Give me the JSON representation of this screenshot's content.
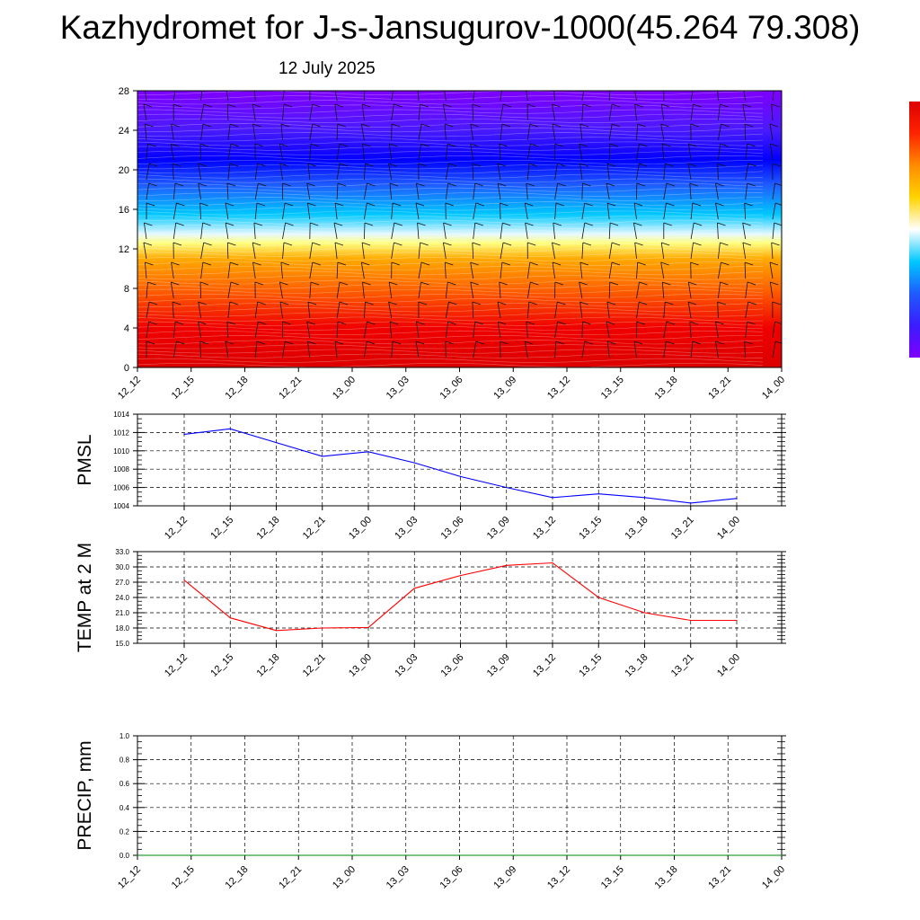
{
  "header": {
    "title": "Kazhydromet for J-s-Jansugurov-1000(45.264 79.308)",
    "date": "12 July 2025"
  },
  "colors": {
    "pmsl_line": "#0000ff",
    "temp_line": "#ff0000",
    "precip_line": "#008000",
    "grid": "#000000",
    "colorbar": [
      "#7f00ff",
      "#3a1cff",
      "#1f5bff",
      "#00c8ff",
      "#ffffff",
      "#ffd400",
      "#ff8c00",
      "#ff2400",
      "#dc0000"
    ]
  },
  "chart_data": [
    {
      "type": "heatmap",
      "title": "",
      "xlabel": "",
      "ylabel": "",
      "categories": [
        "12_12",
        "12_15",
        "12_18",
        "12_21",
        "13_00",
        "13_03",
        "13_06",
        "13_09",
        "13_12",
        "13_15",
        "13_18",
        "13_21",
        "14_00"
      ],
      "y_ticks": [
        0,
        4,
        8,
        12,
        16,
        20,
        24,
        28
      ],
      "ylim": [
        0,
        28
      ],
      "color_bands": [
        {
          "level": 0,
          "color": "#dc0000"
        },
        {
          "level": 4,
          "color": "#f00000"
        },
        {
          "level": 8,
          "color": "#ff6400"
        },
        {
          "level": 11,
          "color": "#ffaa00"
        },
        {
          "level": 12.6,
          "color": "#ffff80"
        },
        {
          "level": 13.5,
          "color": "#e6f8ff"
        },
        {
          "level": 15.5,
          "color": "#00c8ff"
        },
        {
          "level": 18.5,
          "color": "#1f5bff"
        },
        {
          "level": 21,
          "color": "#0000ff"
        },
        {
          "level": 24,
          "color": "#4a1aff"
        },
        {
          "level": 28,
          "color": "#7f00ff"
        }
      ]
    },
    {
      "type": "line",
      "title": "",
      "xlabel": "",
      "ylabel": "PMSL",
      "categories": [
        "12_12",
        "12_15",
        "12_18",
        "12_21",
        "13_00",
        "13_03",
        "13_06",
        "13_09",
        "13_12",
        "13_15",
        "13_18",
        "13_21",
        "14_00"
      ],
      "values": [
        1011.8,
        1012.4,
        1010.9,
        1009.4,
        1009.9,
        1008.7,
        1007.2,
        1006.0,
        1004.9,
        1005.3,
        1004.9,
        1004.3,
        1004.8
      ],
      "ylim": [
        1004,
        1014
      ],
      "y_ticks": [
        1004,
        1006,
        1008,
        1010,
        1012,
        1014
      ],
      "grid": true
    },
    {
      "type": "line",
      "title": "",
      "xlabel": "",
      "ylabel": "TEMP at 2 M",
      "categories": [
        "12_12",
        "12_15",
        "12_18",
        "12_21",
        "13_00",
        "13_03",
        "13_06",
        "13_09",
        "13_12",
        "13_15",
        "13_18",
        "13_21",
        "14_00"
      ],
      "values": [
        27.4,
        20.0,
        17.5,
        18.0,
        18.1,
        25.8,
        28.3,
        30.3,
        30.8,
        24.0,
        21.0,
        19.5,
        19.5
      ],
      "ylim": [
        15,
        33
      ],
      "y_ticks": [
        "15.0",
        "18.0",
        "21.0",
        "24.0",
        "27.0",
        "30.0",
        "33.0"
      ],
      "grid": true
    },
    {
      "type": "line",
      "title": "",
      "xlabel": "",
      "ylabel": "PRECIP, mm",
      "categories": [
        "12_12",
        "12_15",
        "12_18",
        "12_21",
        "13_00",
        "13_03",
        "13_06",
        "13_09",
        "13_12",
        "13_15",
        "13_18",
        "13_21",
        "14_00"
      ],
      "values": [
        0,
        0,
        0,
        0,
        0,
        0,
        0,
        0,
        0,
        0,
        0,
        0,
        0
      ],
      "ylim": [
        0,
        1
      ],
      "y_ticks": [
        "0.0",
        "0.2",
        "0.4",
        "0.6",
        "0.8",
        "1.0"
      ],
      "grid": true
    }
  ]
}
